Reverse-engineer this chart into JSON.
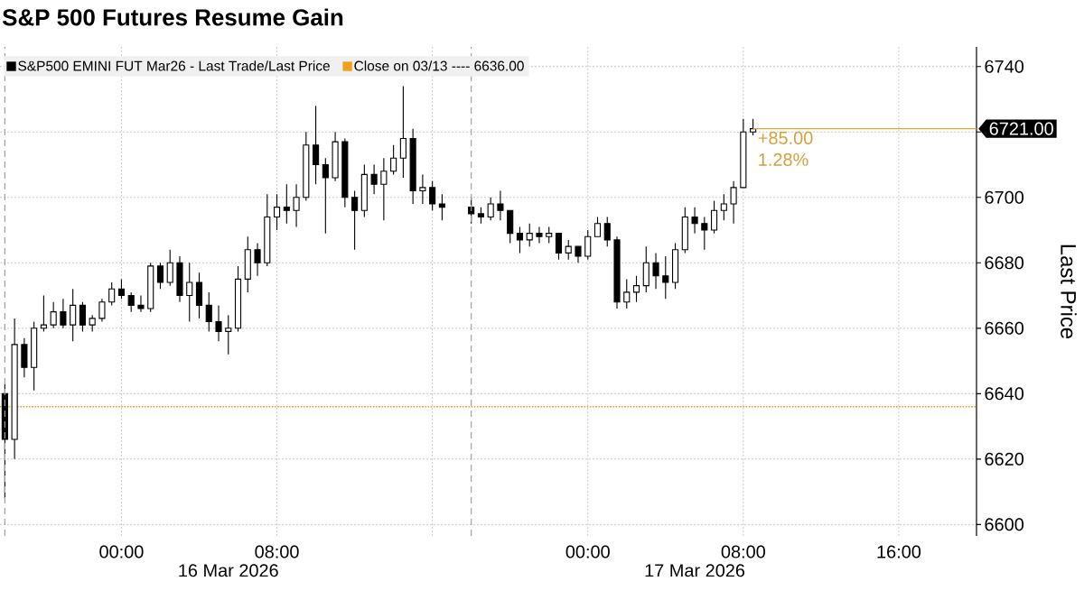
{
  "chart_data": {
    "type": "candlestick",
    "title": "S&P 500 Futures Resume Gain",
    "ylabel": "Last Price",
    "series": [
      {
        "name": "S&P500 EMINI FUT Mar26 - Last Trade/Last Price",
        "color": "#000000",
        "x": [
          "2026-03-15T18:00",
          "2026-03-15T18:30",
          "2026-03-15T19:00",
          "2026-03-15T19:30",
          "2026-03-15T20:00",
          "2026-03-15T20:30",
          "2026-03-15T21:00",
          "2026-03-15T21:30",
          "2026-03-15T22:00",
          "2026-03-15T22:30",
          "2026-03-15T23:00",
          "2026-03-15T23:30",
          "2026-03-16T00:00",
          "2026-03-16T00:30",
          "2026-03-16T01:00",
          "2026-03-16T01:30",
          "2026-03-16T02:00",
          "2026-03-16T02:30",
          "2026-03-16T03:00",
          "2026-03-16T03:30",
          "2026-03-16T04:00",
          "2026-03-16T04:30",
          "2026-03-16T05:00",
          "2026-03-16T05:30",
          "2026-03-16T06:00",
          "2026-03-16T06:30",
          "2026-03-16T07:00",
          "2026-03-16T07:30",
          "2026-03-16T08:00",
          "2026-03-16T08:30",
          "2026-03-16T09:00",
          "2026-03-16T09:30",
          "2026-03-16T10:00",
          "2026-03-16T10:30",
          "2026-03-16T11:00",
          "2026-03-16T11:30",
          "2026-03-16T12:00",
          "2026-03-16T12:30",
          "2026-03-16T13:00",
          "2026-03-16T13:30",
          "2026-03-16T14:00",
          "2026-03-16T14:30",
          "2026-03-16T15:00",
          "2026-03-16T15:30",
          "2026-03-16T16:00",
          "2026-03-16T16:30",
          "2026-03-16T18:00",
          "2026-03-16T18:30",
          "2026-03-16T19:00",
          "2026-03-16T19:30",
          "2026-03-16T20:00",
          "2026-03-16T20:30",
          "2026-03-16T21:00",
          "2026-03-16T21:30",
          "2026-03-16T22:00",
          "2026-03-16T22:30",
          "2026-03-16T23:00",
          "2026-03-16T23:30",
          "2026-03-17T00:00",
          "2026-03-17T00:30",
          "2026-03-17T01:00",
          "2026-03-17T01:30",
          "2026-03-17T02:00",
          "2026-03-17T02:30",
          "2026-03-17T03:00",
          "2026-03-17T03:30",
          "2026-03-17T04:00",
          "2026-03-17T04:30",
          "2026-03-17T05:00",
          "2026-03-17T05:30",
          "2026-03-17T06:00",
          "2026-03-17T06:30",
          "2026-03-17T07:00",
          "2026-03-17T07:30",
          "2026-03-17T08:00",
          "2026-03-17T08:30"
        ],
        "ohlc": [
          [
            6640,
            6643,
            6608,
            6626
          ],
          [
            6626,
            6663,
            6620,
            6655
          ],
          [
            6655,
            6657,
            6645,
            6648
          ],
          [
            6648,
            6662,
            6641,
            6660
          ],
          [
            6660,
            6670,
            6659,
            6661
          ],
          [
            6661,
            6668,
            6660,
            6665
          ],
          [
            6665,
            6669,
            6660,
            6661
          ],
          [
            6661,
            6672,
            6656,
            6667
          ],
          [
            6667,
            6668,
            6659,
            6661
          ],
          [
            6661,
            6664,
            6659,
            6663
          ],
          [
            6663,
            6669,
            6662,
            6668
          ],
          [
            6668,
            6674,
            6667,
            6672
          ],
          [
            6672,
            6675,
            6669,
            6670
          ],
          [
            6670,
            6671,
            6665,
            6667
          ],
          [
            6667,
            6670,
            6665,
            6666
          ],
          [
            6666,
            6680,
            6665,
            6679
          ],
          [
            6679,
            6680,
            6672,
            6674
          ],
          [
            6674,
            6684,
            6673,
            6680
          ],
          [
            6680,
            6682,
            6668,
            6670
          ],
          [
            6670,
            6680,
            6662,
            6674
          ],
          [
            6674,
            6677,
            6663,
            6667
          ],
          [
            6667,
            6671,
            6659,
            6662
          ],
          [
            6662,
            6667,
            6656,
            6659
          ],
          [
            6659,
            6664,
            6652,
            6660
          ],
          [
            6660,
            6679,
            6659,
            6675
          ],
          [
            6675,
            6688,
            6671,
            6684
          ],
          [
            6684,
            6686,
            6676,
            6680
          ],
          [
            6680,
            6701,
            6679,
            6694
          ],
          [
            6694,
            6701,
            6690,
            6697
          ],
          [
            6697,
            6704,
            6692,
            6696
          ],
          [
            6696,
            6704,
            6691,
            6700
          ],
          [
            6700,
            6720,
            6699,
            6716
          ],
          [
            6716,
            6728,
            6704,
            6710
          ],
          [
            6710,
            6712,
            6689,
            6706
          ],
          [
            6706,
            6720,
            6705,
            6717
          ],
          [
            6717,
            6718,
            6697,
            6700
          ],
          [
            6700,
            6702,
            6684,
            6696
          ],
          [
            6696,
            6710,
            6694,
            6707
          ],
          [
            6707,
            6710,
            6701,
            6704
          ],
          [
            6704,
            6712,
            6693,
            6708
          ],
          [
            6708,
            6716,
            6707,
            6712
          ],
          [
            6712,
            6734,
            6706,
            6718
          ],
          [
            6718,
            6721,
            6698,
            6702
          ],
          [
            6702,
            6707,
            6698,
            6703
          ],
          [
            6703,
            6705,
            6696,
            6698
          ],
          [
            6698,
            6701,
            6693,
            6697
          ],
          [
            6697,
            6700,
            6692,
            6695
          ],
          [
            6695,
            6697,
            6692,
            6694
          ],
          [
            6694,
            6700,
            6693,
            6698
          ],
          [
            6698,
            6702,
            6693,
            6696
          ],
          [
            6696,
            6696,
            6686,
            6689
          ],
          [
            6689,
            6691,
            6683,
            6687
          ],
          [
            6687,
            6692,
            6685,
            6689
          ],
          [
            6689,
            6691,
            6686,
            6688
          ],
          [
            6688,
            6691,
            6686,
            6689
          ],
          [
            6689,
            6689,
            6681,
            6683
          ],
          [
            6683,
            6687,
            6681,
            6685
          ],
          [
            6685,
            6685,
            6680,
            6682
          ],
          [
            6682,
            6690,
            6681,
            6688
          ],
          [
            6688,
            6694,
            6688,
            6692
          ],
          [
            6692,
            6694,
            6685,
            6687
          ],
          [
            6687,
            6688,
            6666,
            6668
          ],
          [
            6668,
            6675,
            6666,
            6671
          ],
          [
            6671,
            6676,
            6668,
            6673
          ],
          [
            6673,
            6685,
            6671,
            6680
          ],
          [
            6680,
            6683,
            6672,
            6676
          ],
          [
            6676,
            6682,
            6669,
            6674
          ],
          [
            6674,
            6686,
            6672,
            6684
          ],
          [
            6684,
            6697,
            6683,
            6694
          ],
          [
            6694,
            6697,
            6689,
            6692
          ],
          [
            6692,
            6694,
            6684,
            6690
          ],
          [
            6690,
            6699,
            6689,
            6696
          ],
          [
            6696,
            6701,
            6693,
            6698
          ],
          [
            6698,
            6705,
            6692,
            6703
          ],
          [
            6703,
            6724,
            6703,
            6720
          ],
          [
            6720,
            6724,
            6719,
            6721
          ]
        ]
      },
      {
        "type": "line",
        "color": "#d9a640",
        "x": [
          "2026-03-17T08:30",
          "2026-03-17T20:00"
        ],
        "values": [
          6721,
          6721
        ]
      }
    ],
    "xlim": [
      "2026-03-15T17:45",
      "2026-03-17T20:00"
    ],
    "xticks": [
      {
        "value": "2026-03-16",
        "label": "00:00"
      },
      {
        "value": "2026-03-16T08:00",
        "label": "08:00"
      },
      {
        "value": "2026-03-16T16:00",
        "label": null
      },
      {
        "value": "2026-03-17",
        "label": "00:00"
      },
      {
        "value": "2026-03-17T08:00",
        "label": "08:00"
      },
      {
        "value": "2026-03-17T16:00",
        "label": "16:00"
      }
    ],
    "ylim": [
      6596.5,
      6746
    ],
    "yticks": [
      6600,
      6620,
      6640,
      6660,
      6680,
      6700,
      {
        "value": 6720,
        "label": null
      },
      6740
    ],
    "grid": true,
    "legend": "top left",
    "ref_lines": [
      {
        "axis": "y",
        "value": 6636,
        "label": "Close on 03/13 ---- 6636.00",
        "color": "#eea21b",
        "line_style": "dotted"
      },
      {
        "axis": "x",
        "value": "2026-03-15T18:00",
        "color": "#a0a0a0",
        "line_style": "dashed"
      },
      {
        "axis": "x",
        "value": "2026-03-16T18:00",
        "color": "#a0a0a0",
        "line_style": "dashed"
      }
    ],
    "annotations": [
      {
        "text": "+85.00",
        "x": "2026-03-17T08:30",
        "y": 6721
      },
      {
        "text": "1.28%",
        "x": "2026-03-17T08:30",
        "y": 6721
      },
      {
        "text": "6721.00",
        "x": "2026-03-17T20:00",
        "y": 6721
      },
      "16 Mar 2026",
      "17 Mar 2026"
    ]
  }
}
